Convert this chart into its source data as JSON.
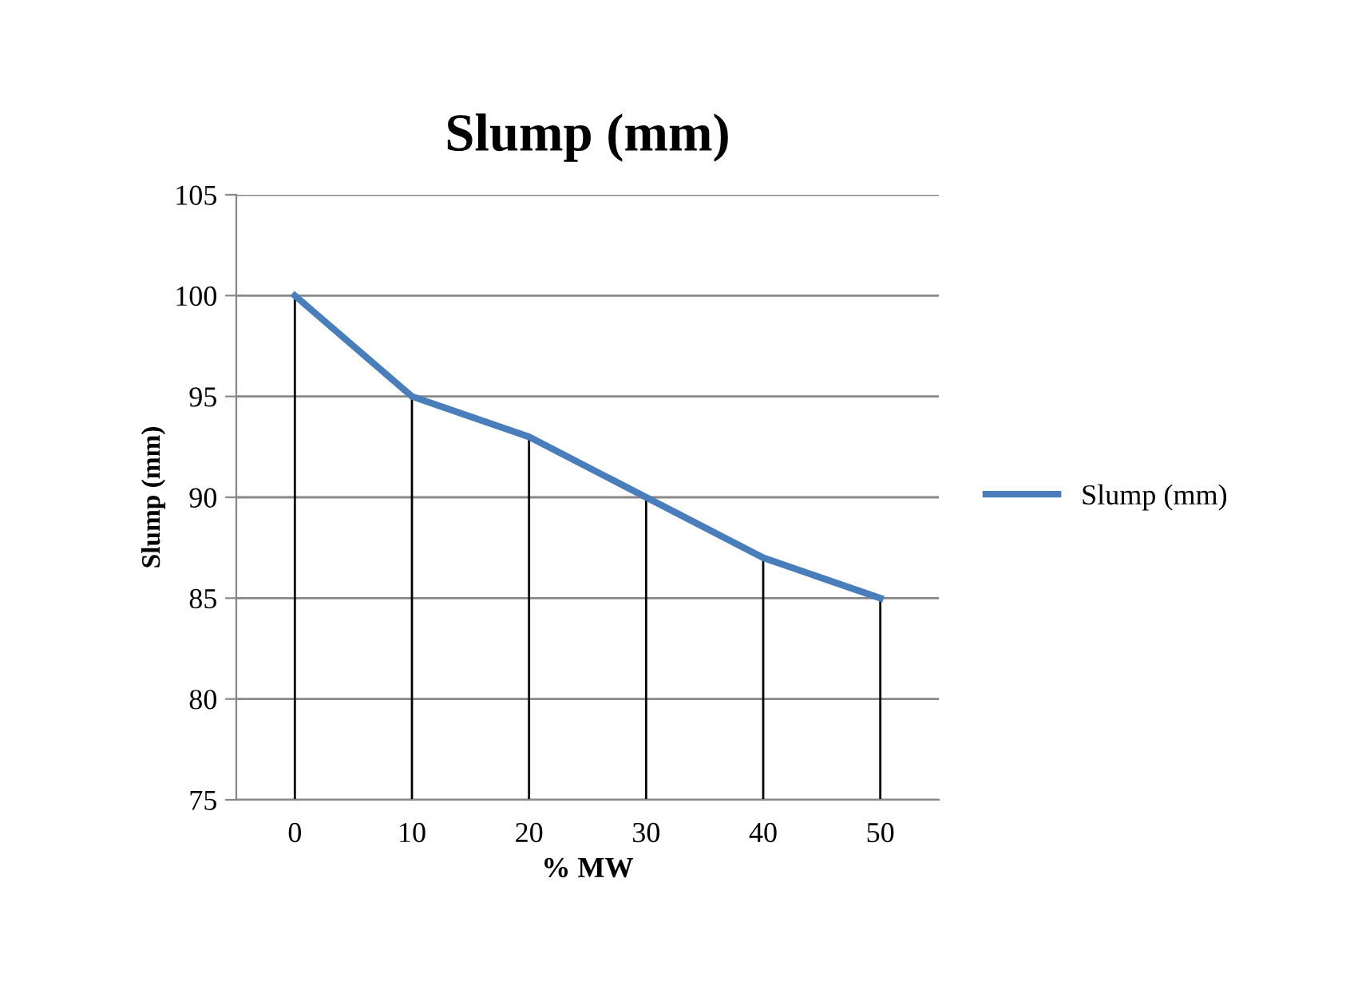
{
  "chart_data": {
    "type": "line",
    "title": "Slump (mm)",
    "xlabel": "% MW",
    "ylabel": "Slump (mm)",
    "categories": [
      "0",
      "10",
      "20",
      "30",
      "40",
      "50"
    ],
    "series": [
      {
        "name": "Slump (mm)",
        "color": "#4a7ebb",
        "values": [
          100,
          95,
          93,
          90,
          87,
          85
        ],
        "errors": [
          [
            75,
            100
          ],
          [
            75,
            95
          ],
          [
            75,
            93
          ],
          [
            75,
            90
          ],
          [
            75,
            87
          ],
          [
            75,
            85
          ]
        ]
      }
    ],
    "ylim": [
      75,
      105
    ],
    "yticks": [
      75,
      80,
      85,
      90,
      95,
      100,
      105
    ],
    "grid": "y",
    "legend": "right",
    "marker": "none",
    "line_style": "solid"
  }
}
